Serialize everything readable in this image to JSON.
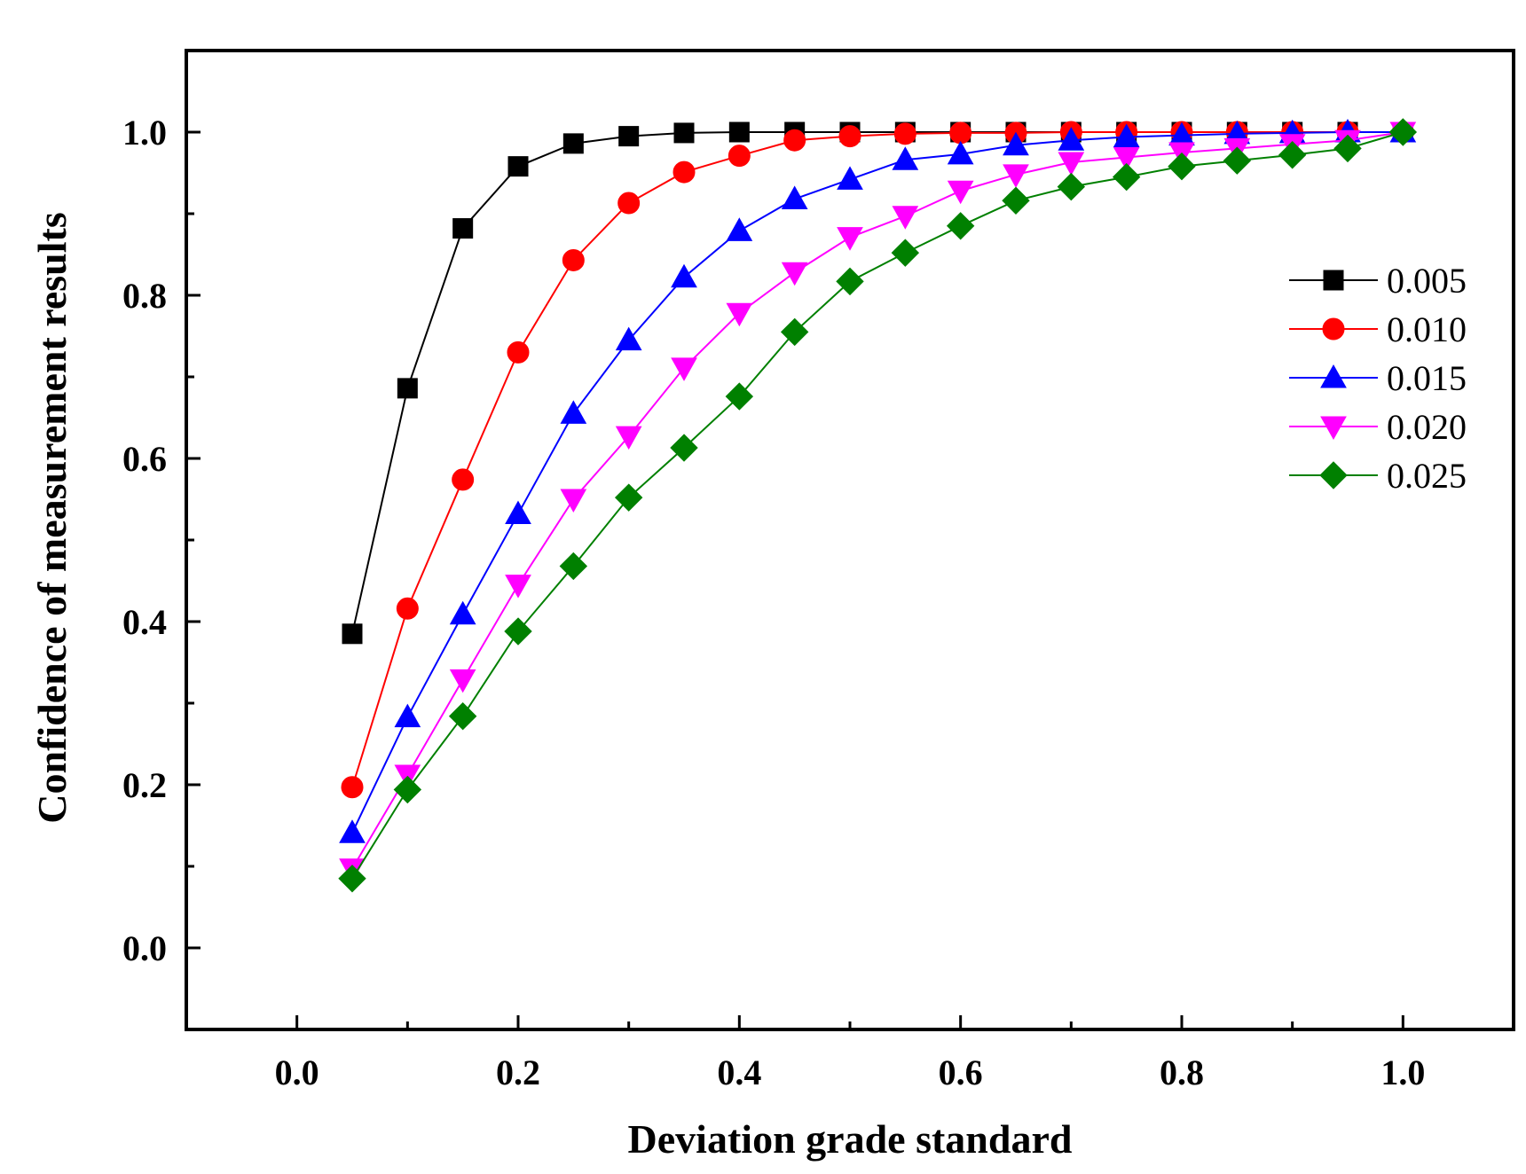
{
  "chart_data": {
    "type": "line",
    "title": "",
    "xlabel": "Deviation grade standard",
    "ylabel": "Confidence of measurement results",
    "xlim": [
      -0.1,
      1.1
    ],
    "ylim": [
      -0.1,
      1.1
    ],
    "xticks": [
      "0.0",
      "0.2",
      "0.4",
      "0.6",
      "0.8",
      "1.0"
    ],
    "yticks": [
      "0.0",
      "0.2",
      "0.4",
      "0.6",
      "0.8",
      "1.0"
    ],
    "grid": false,
    "legend_position": "right",
    "x": [
      0.05,
      0.1,
      0.15,
      0.2,
      0.25,
      0.3,
      0.35,
      0.4,
      0.45,
      0.5,
      0.55,
      0.6,
      0.65,
      0.7,
      0.75,
      0.8,
      0.85,
      0.9,
      0.95,
      1.0
    ],
    "series": [
      {
        "name": "0.005",
        "color": "#000000",
        "marker": "square",
        "values": [
          0.385,
          0.686,
          0.882,
          0.958,
          0.986,
          0.995,
          0.999,
          1.0,
          1.0,
          1.0,
          1.0,
          1.0,
          1.0,
          1.0,
          1.0,
          1.0,
          1.0,
          1.0,
          1.0,
          1.0
        ]
      },
      {
        "name": "0.010",
        "color": "#ff0000",
        "marker": "circle",
        "values": [
          0.197,
          0.416,
          0.574,
          0.73,
          0.843,
          0.913,
          0.951,
          0.971,
          0.99,
          0.995,
          0.998,
          0.999,
          0.999,
          1.0,
          1.0,
          1.0,
          1.0,
          1.0,
          1.0,
          1.0
        ]
      },
      {
        "name": "0.015",
        "color": "#0000ff",
        "marker": "triangle-up",
        "values": [
          0.141,
          0.283,
          0.409,
          0.532,
          0.655,
          0.745,
          0.822,
          0.879,
          0.918,
          0.942,
          0.966,
          0.973,
          0.984,
          0.99,
          0.994,
          0.996,
          0.998,
          0.999,
          1.0,
          1.0
        ]
      },
      {
        "name": "0.020",
        "color": "#ff00ff",
        "marker": "triangle-down",
        "values": [
          0.097,
          0.212,
          0.329,
          0.445,
          0.55,
          0.627,
          0.711,
          0.778,
          0.828,
          0.871,
          0.897,
          0.928,
          0.948,
          0.963,
          0.969,
          0.975,
          0.98,
          0.985,
          0.99,
          1.0
        ]
      },
      {
        "name": "0.025",
        "color": "#008000",
        "marker": "diamond",
        "values": [
          0.085,
          0.194,
          0.284,
          0.388,
          0.468,
          0.552,
          0.613,
          0.676,
          0.755,
          0.817,
          0.852,
          0.885,
          0.916,
          0.933,
          0.945,
          0.958,
          0.965,
          0.972,
          0.98,
          1.0
        ]
      }
    ]
  }
}
